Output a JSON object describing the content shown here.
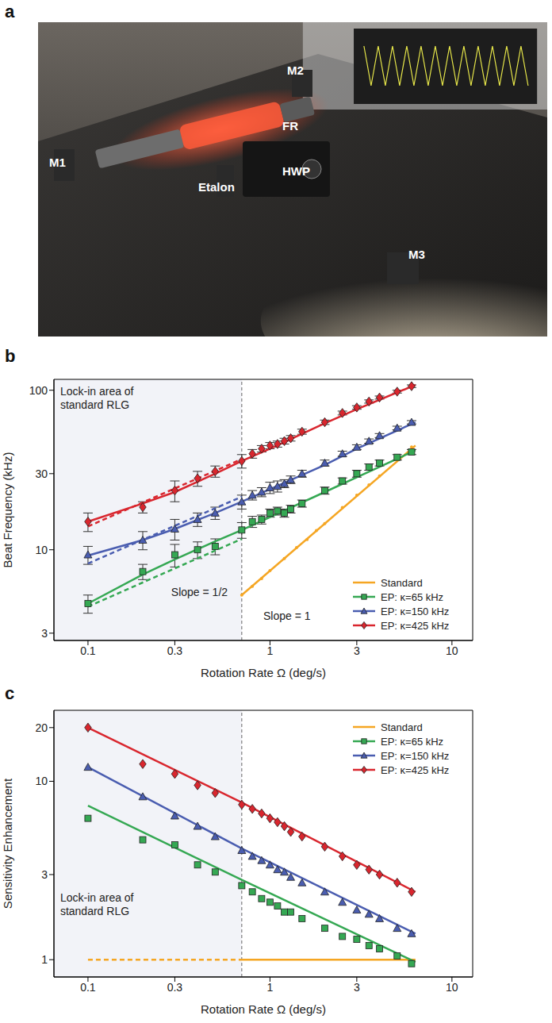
{
  "photo": {
    "panel_label": "a",
    "labels": [
      "M1",
      "M2",
      "FR",
      "HWP",
      "Etalon",
      "M3"
    ]
  },
  "chart_data": [
    {
      "panel_label": "b",
      "type": "scatter",
      "log": true,
      "grid": false,
      "x_label": "Rotation Rate Ω (deg/s)",
      "y_label": "Beat Frequency (kHz)",
      "xlim": [
        0.065,
        13
      ],
      "ylim": [
        2.7,
        117
      ],
      "xticks": [
        0.1,
        0.3,
        1,
        3,
        10
      ],
      "yticks": [
        3,
        10,
        30,
        100
      ],
      "lock_in_boundary": 0.7,
      "annotations": [
        "Lock-in area of standard RLG",
        "Slope = 1/2",
        "Slope = 1"
      ],
      "legend": "lower right",
      "series": [
        {
          "name": "Standard",
          "color": "#f5a623",
          "marker": "circle",
          "x": [
            0.7,
            0.8,
            0.9,
            1,
            1.2,
            1.4,
            1.6,
            1.8,
            2,
            2.5,
            3,
            3.5,
            4,
            5,
            6
          ],
          "values": [
            5.2,
            5.9,
            6.6,
            7.4,
            8.8,
            10.3,
            11.6,
            13.2,
            14.6,
            18.4,
            22,
            25.5,
            29,
            36.6,
            44
          ],
          "lines": [
            {
              "x": [
                0.7,
                6.3
              ],
              "values": [
                5.2,
                45
              ],
              "line_style": "solid"
            }
          ]
        },
        {
          "name": "EP: κ=65 kHz",
          "color": "#35a853",
          "marker": "square",
          "x": [
            0.1,
            0.2,
            0.3,
            0.4,
            0.5,
            0.7,
            0.8,
            0.9,
            1.0,
            1.1,
            1.2,
            1.3,
            1.5,
            2,
            2.5,
            3,
            3.5,
            4,
            5,
            6
          ],
          "values": [
            4.6,
            7.3,
            9.3,
            10,
            10.5,
            13.3,
            15,
            15.5,
            17,
            17.5,
            17,
            18,
            19.5,
            23.5,
            27,
            30,
            33,
            35,
            38,
            41
          ],
          "errors": [
            0.6,
            0.8,
            1.5,
            1.2,
            1.2,
            1.5,
            1.2,
            1,
            1,
            1,
            1,
            1,
            1,
            1.2,
            1.2,
            1.5,
            1.5,
            1.5,
            1.5,
            1.5
          ],
          "lines": [
            {
              "x": [
                0.1,
                0.2,
                0.3,
                0.5,
                0.7,
                1,
                2,
                3,
                6.3
              ],
              "values": [
                4.6,
                7,
                8.7,
                11.3,
                13.3,
                16,
                23,
                28.5,
                42
              ],
              "line_style": "solid"
            },
            {
              "x": [
                0.1,
                0.7
              ],
              "values": [
                4.4,
                11.7
              ],
              "line_style": "dashed"
            }
          ]
        },
        {
          "name": "EP: κ=150 kHz",
          "color": "#4a5db0",
          "marker": "triangle",
          "x": [
            0.1,
            0.2,
            0.3,
            0.4,
            0.5,
            0.7,
            0.8,
            0.9,
            1.0,
            1.1,
            1.2,
            1.3,
            1.5,
            2,
            2.5,
            3,
            3.5,
            4,
            5,
            6
          ],
          "values": [
            9.3,
            11.5,
            13.5,
            15.5,
            17,
            20,
            22,
            23,
            24.5,
            25,
            26,
            27.5,
            30,
            35,
            40,
            44,
            48,
            52,
            58,
            63
          ],
          "errors": [
            1.2,
            1.5,
            2,
            1.5,
            1.5,
            2,
            1.5,
            1.5,
            2,
            2,
            1.5,
            1.5,
            1.5,
            1.5,
            1.5,
            1.5,
            1.5,
            1.5,
            1.5,
            1.5
          ],
          "lines": [
            {
              "x": [
                0.1,
                0.2,
                0.3,
                0.5,
                0.7,
                1,
                2,
                3,
                6.3
              ],
              "values": [
                9.2,
                11.5,
                13.5,
                17,
                20,
                24,
                34,
                43,
                63
              ],
              "line_style": "solid"
            },
            {
              "x": [
                0.1,
                0.7
              ],
              "values": [
                8.2,
                21.5
              ],
              "line_style": "dashed"
            }
          ]
        },
        {
          "name": "EP: κ=425 kHz",
          "color": "#d9262e",
          "marker": "diamond",
          "x": [
            0.1,
            0.2,
            0.3,
            0.4,
            0.5,
            0.7,
            0.8,
            0.9,
            1.0,
            1.1,
            1.2,
            1.3,
            1.5,
            2,
            2.5,
            3,
            3.5,
            4,
            5,
            6
          ],
          "values": [
            15,
            18.5,
            23.5,
            28,
            31,
            36,
            40,
            43,
            45,
            46,
            48,
            50,
            55,
            63,
            72,
            78,
            85,
            90,
            98,
            106
          ],
          "errors": [
            2,
            1.5,
            3.5,
            3,
            2.5,
            3.5,
            2.5,
            2,
            2,
            2,
            2,
            2,
            2,
            2,
            2,
            2,
            2,
            2,
            2,
            2
          ],
          "lines": [
            {
              "x": [
                0.1,
                0.2,
                0.3,
                0.5,
                0.7,
                1,
                2,
                3,
                6.3
              ],
              "values": [
                15,
                19.5,
                23,
                30,
                36,
                43,
                62,
                76,
                108
              ],
              "line_style": "solid"
            },
            {
              "x": [
                0.1,
                0.7
              ],
              "values": [
                14,
                37
              ],
              "line_style": "dashed"
            }
          ]
        }
      ]
    },
    {
      "panel_label": "c",
      "type": "scatter",
      "log": true,
      "grid": false,
      "x_label": "Rotation Rate Ω (deg/s)",
      "y_label": "Sensitivity Enhancement",
      "xlim": [
        0.065,
        13
      ],
      "ylim": [
        0.8,
        25
      ],
      "xticks": [
        0.1,
        0.3,
        1,
        3,
        10
      ],
      "yticks": [
        1,
        3,
        10,
        20
      ],
      "lock_in_boundary": 0.7,
      "annotations": [
        "Lock-in area of standard RLG"
      ],
      "legend": "upper right",
      "series": [
        {
          "name": "Standard",
          "color": "#f5a623",
          "lines": [
            {
              "x": [
                0.7,
                6.3
              ],
              "values": [
                1,
                1
              ],
              "line_style": "solid"
            },
            {
              "x": [
                0.1,
                0.7
              ],
              "values": [
                1,
                1
              ],
              "line_style": "dashed"
            }
          ]
        },
        {
          "name": "EP: κ=65 kHz",
          "color": "#35a853",
          "marker": "square",
          "x": [
            0.1,
            0.2,
            0.3,
            0.4,
            0.5,
            0.7,
            0.8,
            0.9,
            1.0,
            1.1,
            1.2,
            1.3,
            1.5,
            2,
            2.5,
            3,
            3.5,
            4,
            5,
            6
          ],
          "values": [
            6.2,
            4.7,
            4.4,
            3.4,
            3.1,
            2.6,
            2.4,
            2.2,
            2.1,
            2.0,
            1.85,
            1.85,
            1.7,
            1.5,
            1.35,
            1.3,
            1.2,
            1.15,
            1.05,
            0.95
          ],
          "lines": [
            {
              "x": [
                0.1,
                0.7,
                6.3
              ],
              "values": [
                7.3,
                2.8,
                0.97
              ],
              "line_style": "solid"
            }
          ]
        },
        {
          "name": "EP: κ=150 kHz",
          "color": "#4a5db0",
          "marker": "triangle",
          "x": [
            0.1,
            0.2,
            0.3,
            0.4,
            0.5,
            0.7,
            0.8,
            0.9,
            1.0,
            1.1,
            1.2,
            1.3,
            1.5,
            2,
            2.5,
            3,
            3.5,
            4,
            5,
            6
          ],
          "values": [
            12,
            8.2,
            6.4,
            5.6,
            4.9,
            4.1,
            3.8,
            3.6,
            3.4,
            3.2,
            3.1,
            2.9,
            2.7,
            2.4,
            2.1,
            1.9,
            1.8,
            1.7,
            1.5,
            1.4
          ],
          "lines": [
            {
              "x": [
                0.1,
                0.7,
                6.3
              ],
              "values": [
                12,
                4.2,
                1.4
              ],
              "line_style": "solid"
            }
          ]
        },
        {
          "name": "EP: κ=425 kHz",
          "color": "#d9262e",
          "marker": "diamond",
          "x": [
            0.1,
            0.2,
            0.3,
            0.4,
            0.5,
            0.7,
            0.8,
            0.9,
            1.0,
            1.1,
            1.2,
            1.3,
            1.5,
            2,
            2.5,
            3,
            3.5,
            4,
            5,
            6
          ],
          "values": [
            20,
            12.5,
            11,
            9.5,
            8.6,
            7.4,
            7,
            6.6,
            6.2,
            5.9,
            5.6,
            5.2,
            4.9,
            4.3,
            3.8,
            3.4,
            3.2,
            3.0,
            2.7,
            2.4
          ],
          "lines": [
            {
              "x": [
                0.1,
                0.7,
                6.3
              ],
              "values": [
                20,
                7.6,
                2.4
              ],
              "line_style": "solid"
            }
          ]
        }
      ]
    }
  ]
}
